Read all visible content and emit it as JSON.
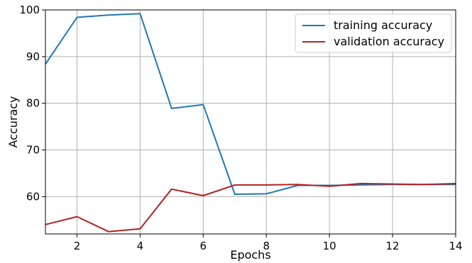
{
  "chart_data": {
    "type": "line",
    "title": "",
    "xlabel": "Epochs",
    "ylabel": "Accuracy",
    "xlim": [
      1,
      14
    ],
    "ylim": [
      52,
      100
    ],
    "xticks": [
      2,
      4,
      6,
      8,
      10,
      12,
      14
    ],
    "yticks": [
      60,
      70,
      80,
      90,
      100
    ],
    "grid": true,
    "legend_position": "top-right",
    "x": [
      1,
      2,
      3,
      4,
      5,
      6,
      7,
      8,
      9,
      10,
      11,
      12,
      13,
      14
    ],
    "series": [
      {
        "name": "training accuracy",
        "color": "#1f77b4",
        "values": [
          88.4,
          98.4,
          98.9,
          99.2,
          78.9,
          79.7,
          60.5,
          60.6,
          62.4,
          62.4,
          62.5,
          62.6,
          62.6,
          62.6
        ]
      },
      {
        "name": "validation accuracy",
        "color": "#b22222",
        "values": [
          54.0,
          55.7,
          52.5,
          53.1,
          61.6,
          60.2,
          62.5,
          62.5,
          62.6,
          62.2,
          62.8,
          62.7,
          62.6,
          62.8
        ]
      }
    ]
  }
}
